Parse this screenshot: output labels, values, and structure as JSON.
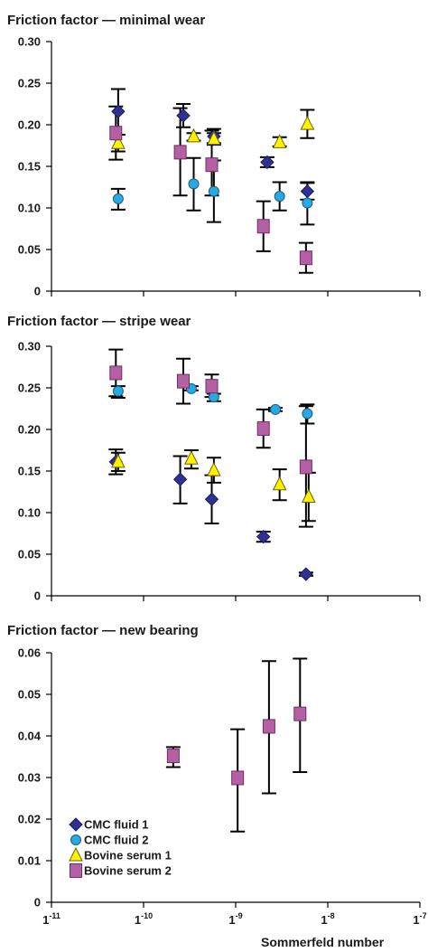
{
  "chart_data": [
    {
      "type": "scatter",
      "title": "Friction factor — minimal wear",
      "x_scale": "log",
      "x_tick_exponents": [
        -11,
        -10,
        -9,
        -8,
        -7
      ],
      "ylim": [
        0,
        0.3
      ],
      "yticks": [
        "0",
        "0.05",
        "0.10",
        "0.15",
        "0.20",
        "0.25",
        "0.30"
      ],
      "series": [
        {
          "name": "CMC fluid 1",
          "marker": "diamond",
          "color": "#2e3192",
          "points": [
            {
              "x": 5.3e-11,
              "y": 0.216,
              "lo": 0.188,
              "hi": 0.243
            },
            {
              "x": 2.7e-10,
              "y": 0.211,
              "lo": 0.197,
              "hi": 0.225
            },
            {
              "x": 5.8e-10,
              "y": 0.186,
              "lo": 0.178,
              "hi": 0.195
            },
            {
              "x": 2.2e-09,
              "y": 0.155,
              "lo": 0.149,
              "hi": 0.161
            },
            {
              "x": 6e-09,
              "y": 0.12,
              "lo": 0.11,
              "hi": 0.13
            }
          ]
        },
        {
          "name": "CMC fluid 2",
          "marker": "circle",
          "color": "#29a9e1",
          "points": [
            {
              "x": 5.3e-11,
              "y": 0.111,
              "lo": 0.098,
              "hi": 0.123
            },
            {
              "x": 3.5e-10,
              "y": 0.129,
              "lo": 0.097,
              "hi": 0.16
            },
            {
              "x": 5.8e-10,
              "y": 0.12,
              "lo": 0.083,
              "hi": 0.157
            },
            {
              "x": 3e-09,
              "y": 0.114,
              "lo": 0.097,
              "hi": 0.131
            },
            {
              "x": 6e-09,
              "y": 0.106,
              "lo": 0.08,
              "hi": 0.131
            }
          ]
        },
        {
          "name": "Bovine serum 1",
          "marker": "triangle",
          "color": "#fff200",
          "points": [
            {
              "x": 5.3e-11,
              "y": 0.178,
              "lo": 0.168,
              "hi": 0.188
            },
            {
              "x": 3.5e-10,
              "y": 0.186,
              "lo": 0.181,
              "hi": 0.19
            },
            {
              "x": 5.8e-10,
              "y": 0.183,
              "lo": 0.176,
              "hi": 0.19
            },
            {
              "x": 3e-09,
              "y": 0.179,
              "lo": 0.174,
              "hi": 0.185
            },
            {
              "x": 6e-09,
              "y": 0.201,
              "lo": 0.184,
              "hi": 0.218
            }
          ]
        },
        {
          "name": "Bovine serum 2",
          "marker": "square",
          "color": "#b55fa5",
          "points": [
            {
              "x": 5e-11,
              "y": 0.19,
              "lo": 0.158,
              "hi": 0.222
            },
            {
              "x": 2.5e-10,
              "y": 0.167,
              "lo": 0.115,
              "hi": 0.22
            },
            {
              "x": 5.5e-10,
              "y": 0.152,
              "lo": 0.115,
              "hi": 0.193
            },
            {
              "x": 2e-09,
              "y": 0.078,
              "lo": 0.048,
              "hi": 0.108
            },
            {
              "x": 5.8e-09,
              "y": 0.04,
              "lo": 0.022,
              "hi": 0.058
            }
          ]
        }
      ]
    },
    {
      "type": "scatter",
      "title": "Friction factor — stripe wear",
      "x_scale": "log",
      "x_tick_exponents": [
        -11,
        -10,
        -9,
        -8,
        -7
      ],
      "ylim": [
        0,
        0.3
      ],
      "yticks": [
        "0",
        "0.05",
        "0.10",
        "0.15",
        "0.20",
        "0.25",
        "0.30"
      ],
      "series": [
        {
          "name": "CMC fluid 1",
          "marker": "diamond",
          "color": "#2e3192",
          "points": [
            {
              "x": 5e-11,
              "y": 0.161,
              "lo": 0.146,
              "hi": 0.176
            },
            {
              "x": 2.5e-10,
              "y": 0.14,
              "lo": 0.111,
              "hi": 0.168
            },
            {
              "x": 5.5e-10,
              "y": 0.116,
              "lo": 0.087,
              "hi": 0.145
            },
            {
              "x": 2e-09,
              "y": 0.071,
              "lo": 0.065,
              "hi": 0.077
            },
            {
              "x": 5.8e-09,
              "y": 0.026,
              "lo": 0.024,
              "hi": 0.028
            }
          ]
        },
        {
          "name": "CMC fluid 2",
          "marker": "circle",
          "color": "#29a9e1",
          "points": [
            {
              "x": 5.3e-11,
              "y": 0.246,
              "lo": 0.238,
              "hi": 0.252
            },
            {
              "x": 3.3e-10,
              "y": 0.249,
              "lo": 0.247,
              "hi": 0.252
            },
            {
              "x": 5.8e-10,
              "y": 0.239,
              "lo": 0.234,
              "hi": 0.243
            },
            {
              "x": 2.7e-09,
              "y": 0.224,
              "lo": 0.222,
              "hi": 0.226
            },
            {
              "x": 6e-09,
              "y": 0.219,
              "lo": 0.207,
              "hi": 0.23
            }
          ]
        },
        {
          "name": "Bovine serum 1",
          "marker": "triangle",
          "color": "#fff200",
          "points": [
            {
              "x": 5.3e-11,
              "y": 0.161,
              "lo": 0.15,
              "hi": 0.172
            },
            {
              "x": 3.3e-10,
              "y": 0.165,
              "lo": 0.153,
              "hi": 0.175
            },
            {
              "x": 5.8e-10,
              "y": 0.151,
              "lo": 0.136,
              "hi": 0.166
            },
            {
              "x": 3e-09,
              "y": 0.134,
              "lo": 0.115,
              "hi": 0.152
            },
            {
              "x": 6.2e-09,
              "y": 0.119,
              "lo": 0.09,
              "hi": 0.148
            }
          ]
        },
        {
          "name": "Bovine serum 2",
          "marker": "square",
          "color": "#b55fa5",
          "points": [
            {
              "x": 5e-11,
              "y": 0.268,
              "lo": 0.24,
              "hi": 0.296
            },
            {
              "x": 2.7e-10,
              "y": 0.258,
              "lo": 0.231,
              "hi": 0.285
            },
            {
              "x": 5.5e-10,
              "y": 0.252,
              "lo": 0.239,
              "hi": 0.266
            },
            {
              "x": 2e-09,
              "y": 0.201,
              "lo": 0.178,
              "hi": 0.224
            },
            {
              "x": 5.8e-09,
              "y": 0.155,
              "lo": 0.083,
              "hi": 0.228
            }
          ]
        }
      ]
    },
    {
      "type": "scatter",
      "title": "Friction factor — new bearing",
      "x_scale": "log",
      "x_tick_exponents": [
        -11,
        -10,
        -9,
        -8,
        -7
      ],
      "xlabel": "Sommerfeld number",
      "ylim": [
        0,
        0.06
      ],
      "yticks": [
        "0",
        "0.01",
        "0.02",
        "0.03",
        "0.04",
        "0.05",
        "0.06"
      ],
      "legend": "bottom-left",
      "series": [
        {
          "name": "CMC fluid 1",
          "marker": "diamond",
          "color": "#2e3192",
          "points": []
        },
        {
          "name": "CMC fluid 2",
          "marker": "circle",
          "color": "#29a9e1",
          "points": []
        },
        {
          "name": "Bovine serum 1",
          "marker": "triangle",
          "color": "#fff200",
          "points": []
        },
        {
          "name": "Bovine serum 2",
          "marker": "square",
          "color": "#b55fa5",
          "points": [
            {
              "x": 2.1e-10,
              "y": 0.0352,
              "lo": 0.0325,
              "hi": 0.0373
            },
            {
              "x": 1.05e-09,
              "y": 0.0299,
              "lo": 0.017,
              "hi": 0.0416
            },
            {
              "x": 2.3e-09,
              "y": 0.0423,
              "lo": 0.0262,
              "hi": 0.058
            },
            {
              "x": 5e-09,
              "y": 0.0453,
              "lo": 0.0313,
              "hi": 0.0586
            }
          ]
        }
      ]
    }
  ]
}
